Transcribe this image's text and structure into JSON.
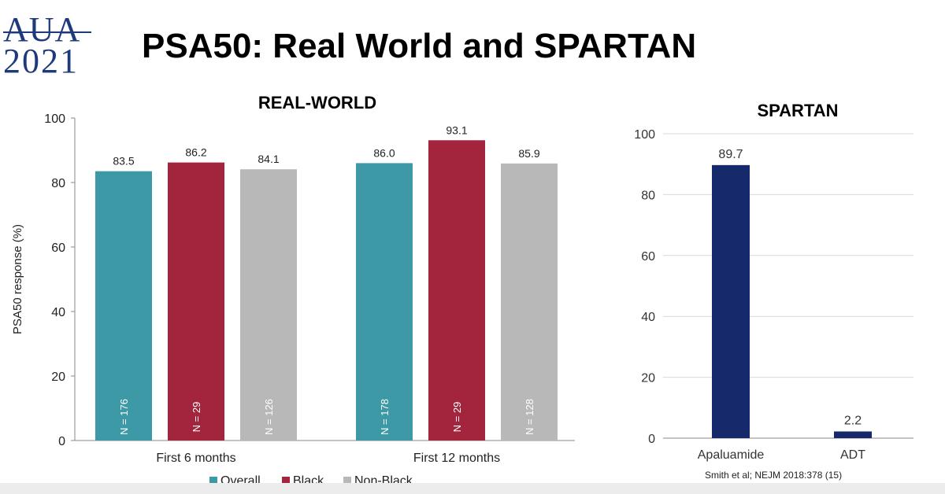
{
  "header": {
    "logo_line1": "AUA",
    "logo_line2": "2021",
    "title": "PSA50:  Real World and SPARTAN"
  },
  "chart_data": [
    {
      "type": "bar",
      "title": "REAL-WORLD",
      "ylabel": "PSA50 response (%)",
      "xlabel": "",
      "ylim": [
        0,
        100
      ],
      "yticks": [
        0,
        20,
        40,
        60,
        80,
        100
      ],
      "grid": false,
      "categories": [
        "First 6 months",
        "First 12 months"
      ],
      "series": [
        {
          "name": "Overall",
          "color": "#3d99a6",
          "values": [
            83.5,
            86.0
          ],
          "n_labels": [
            "N = 176",
            "N = 178"
          ]
        },
        {
          "name": "Black",
          "color": "#a3253d",
          "values": [
            86.2,
            93.1
          ],
          "n_labels": [
            "N = 29",
            "N = 29"
          ]
        },
        {
          "name": "Non-Black",
          "color": "#b8b8b8",
          "values": [
            84.1,
            85.9
          ],
          "n_labels": [
            "N = 126",
            "N = 128"
          ]
        }
      ],
      "legend_position": "bottom"
    },
    {
      "type": "bar",
      "title": "SPARTAN",
      "ylabel": "",
      "xlabel": "",
      "ylim": [
        0,
        100
      ],
      "yticks": [
        0,
        20,
        40,
        60,
        80,
        100
      ],
      "grid": true,
      "categories": [
        "Apaluamide",
        "ADT"
      ],
      "values": [
        89.7,
        2.2
      ],
      "color": "#15296b"
    }
  ],
  "citation": "Smith et al; NEJM 2018:378 (15)"
}
